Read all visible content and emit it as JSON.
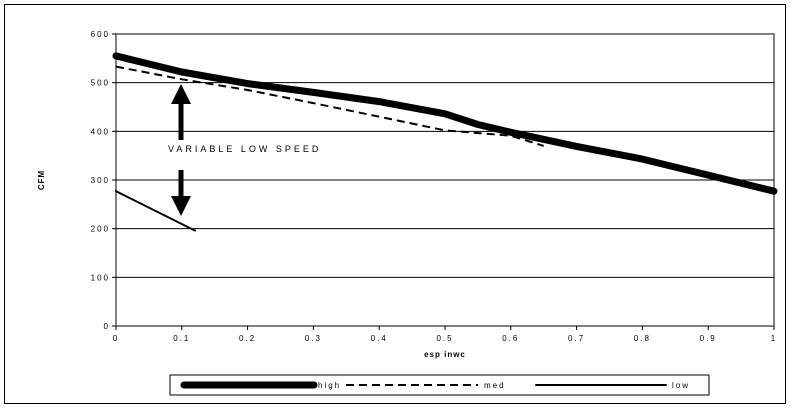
{
  "chart_data": {
    "type": "line",
    "title": "",
    "xlabel": "esp inwc",
    "ylabel": "CFM",
    "xlim": [
      0,
      1
    ],
    "ylim": [
      0,
      600
    ],
    "x_ticks": [
      "0",
      "0.1",
      "0.2",
      "0.3",
      "0.4",
      "0.5",
      "0.6",
      "0.7",
      "0.8",
      "0.9",
      "1"
    ],
    "y_ticks": [
      "0",
      "100",
      "200",
      "300",
      "400",
      "500",
      "600"
    ],
    "grid": "horizontal",
    "plot_background": "#ffffff",
    "plot_border_color": "#808080",
    "legend_position": "bottom",
    "annotation": "VARIABLE LOW SPEED",
    "series": [
      {
        "name": "high",
        "style": "thick-solid",
        "color": "#000000",
        "points": [
          [
            0,
            555
          ],
          [
            0.1,
            522
          ],
          [
            0.2,
            498
          ],
          [
            0.3,
            480
          ],
          [
            0.4,
            461
          ],
          [
            0.5,
            436
          ],
          [
            0.55,
            414
          ],
          [
            0.6,
            398
          ],
          [
            0.7,
            369
          ],
          [
            0.8,
            343
          ],
          [
            0.9,
            310
          ],
          [
            1.0,
            277
          ]
        ]
      },
      {
        "name": "med",
        "style": "dashed",
        "color": "#000000",
        "points": [
          [
            0,
            533
          ],
          [
            0.1,
            507
          ],
          [
            0.2,
            485
          ],
          [
            0.3,
            458
          ],
          [
            0.4,
            430
          ],
          [
            0.5,
            402
          ],
          [
            0.6,
            391
          ],
          [
            0.65,
            370
          ]
        ]
      },
      {
        "name": "low",
        "style": "solid",
        "color": "#000000",
        "points": [
          [
            0,
            277
          ],
          [
            0.12,
            196
          ]
        ]
      }
    ]
  }
}
